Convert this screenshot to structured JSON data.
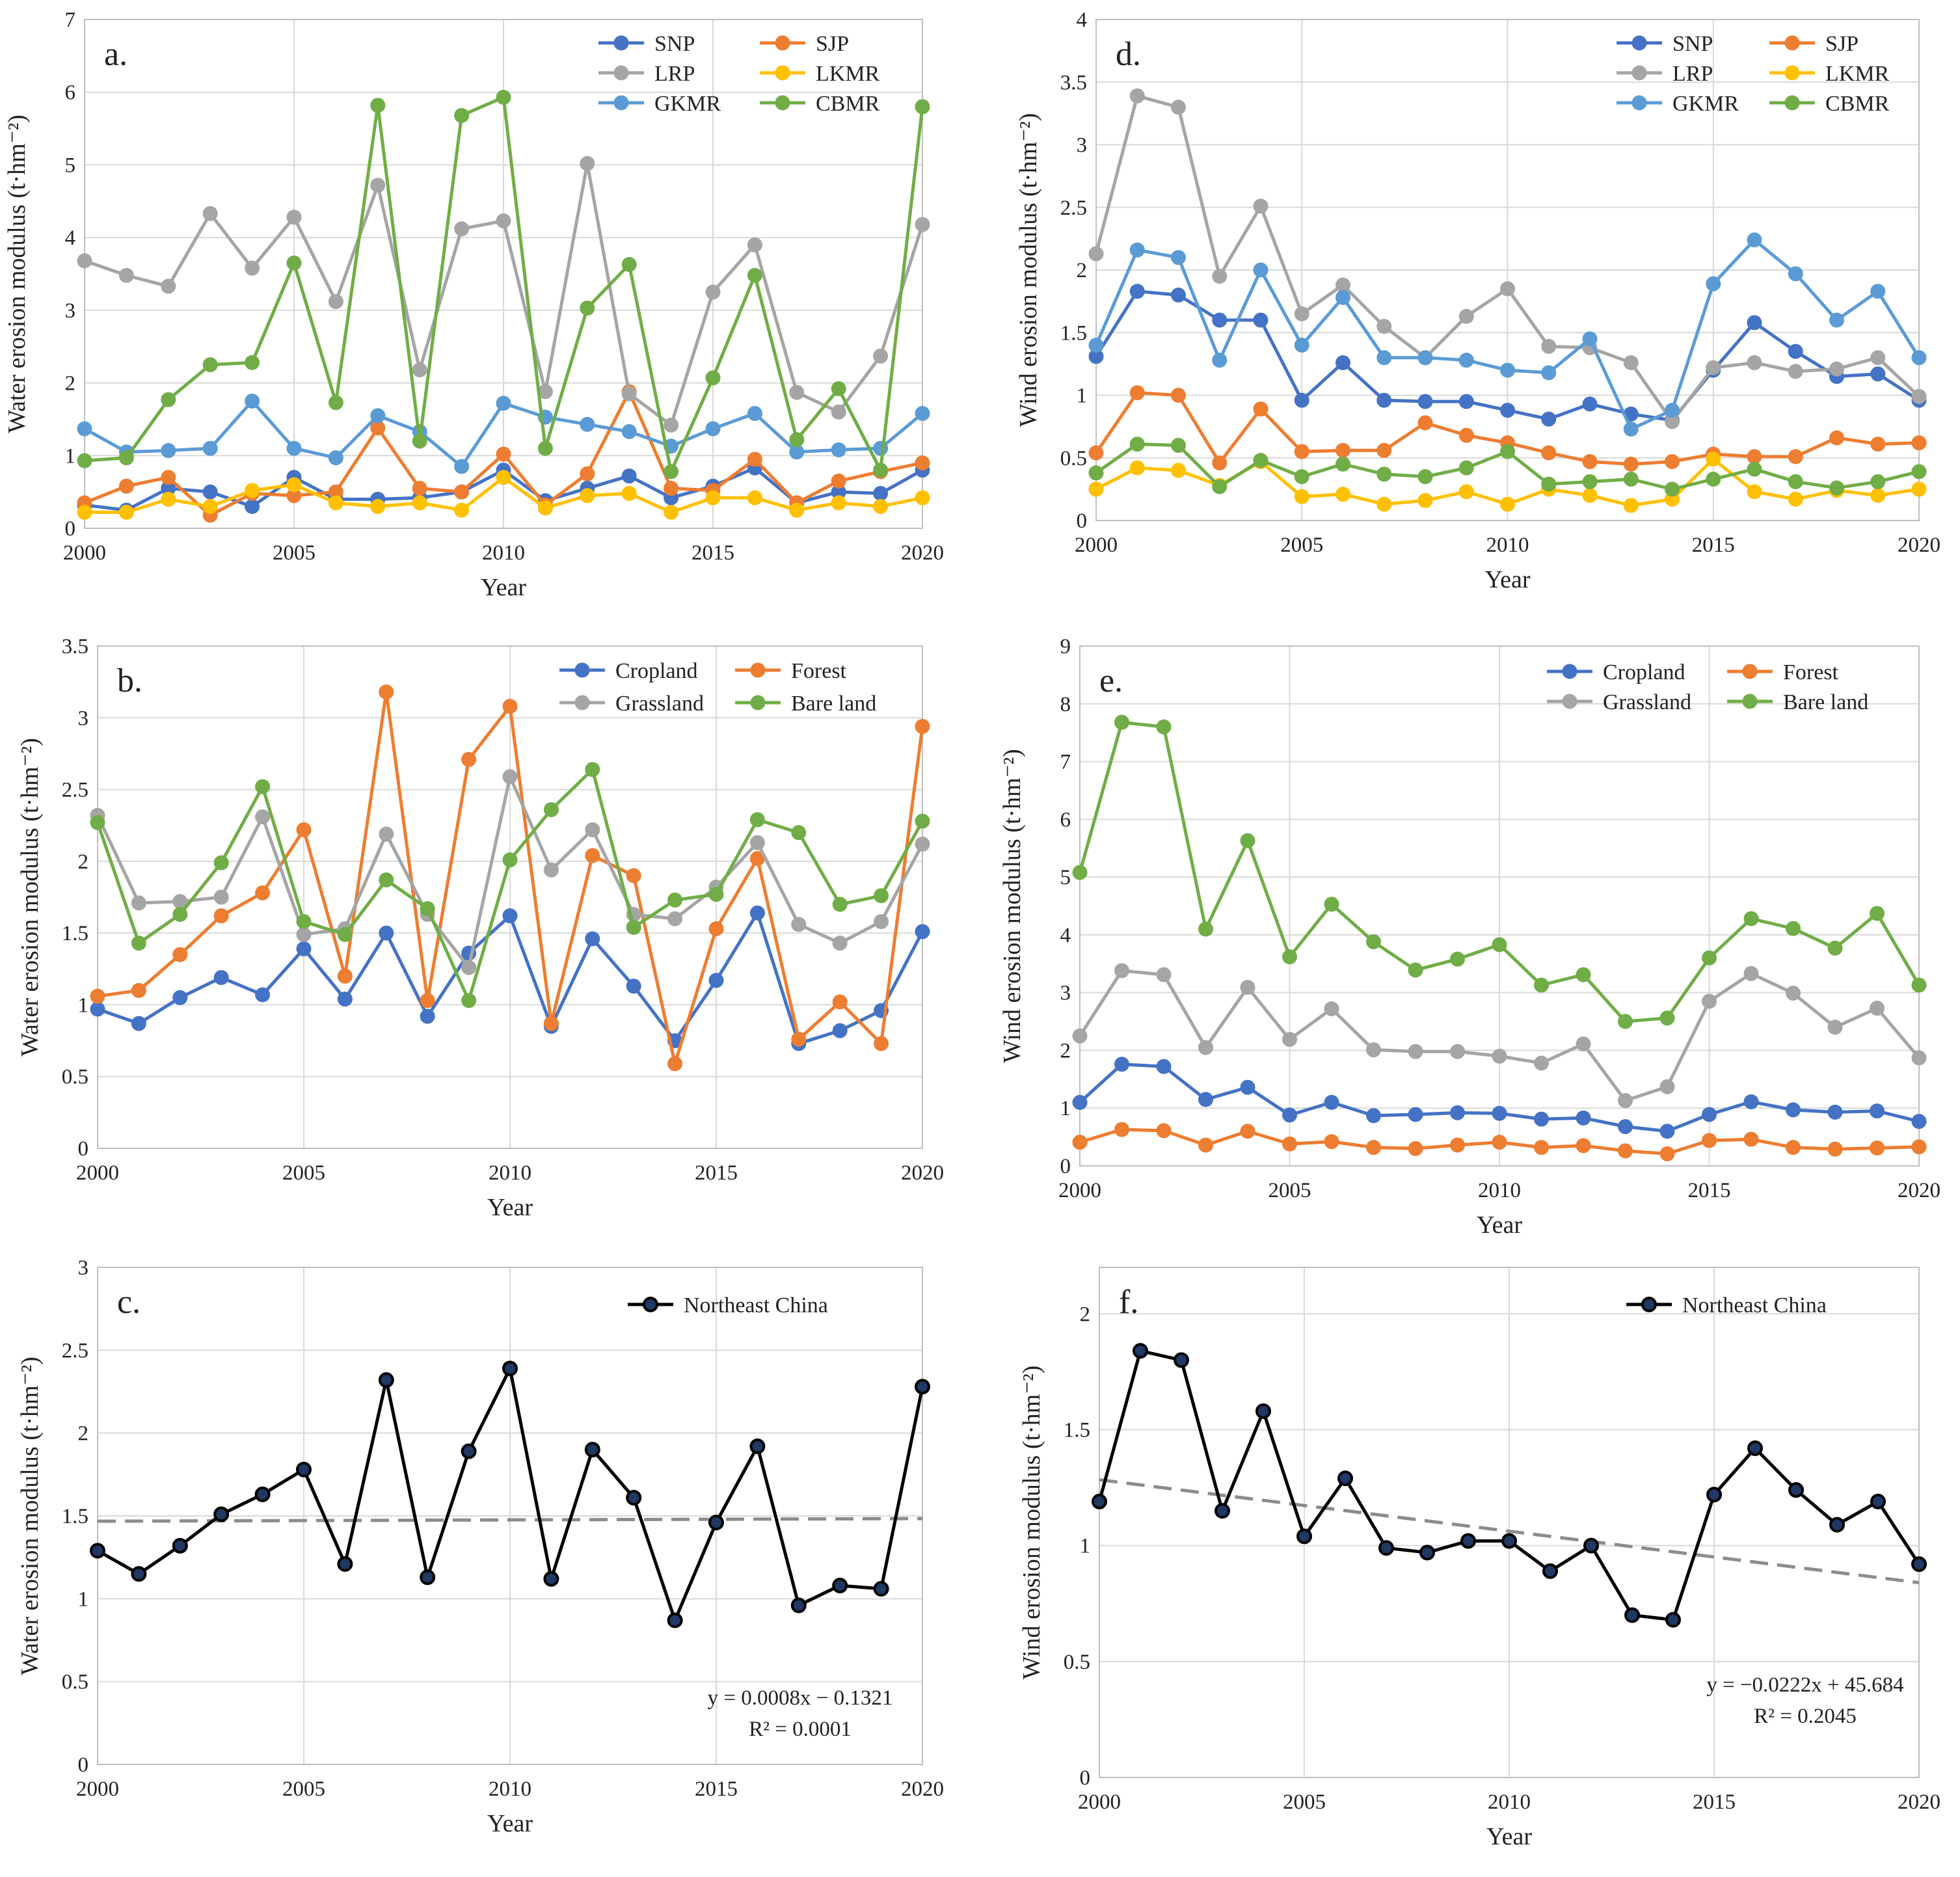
{
  "figure": {
    "panels": [
      "a",
      "b",
      "c",
      "d",
      "e",
      "f"
    ]
  },
  "colors": {
    "SNP": "#4472c4",
    "SJP": "#ed7d31",
    "LRP": "#a5a5a5",
    "LKMR": "#ffc000",
    "GKMR": "#5b9bd5",
    "CBMR": "#70ad47",
    "Cropland": "#4472c4",
    "Forest": "#ed7d31",
    "Grassland": "#a5a5a5",
    "Bare land": "#70ad47",
    "Northeast China": "#000000",
    "trend": "#8c8c8c",
    "grid": "#d9d9d9"
  },
  "chart_data": [
    {
      "id": "a",
      "type": "line",
      "panel_label": "a.",
      "xlabel": "Year",
      "ylabel": "Water erosion modulus (t·hm⁻²)",
      "xlim": [
        2000,
        2020
      ],
      "xticks": [
        2000,
        2005,
        2010,
        2015,
        2020
      ],
      "ylim": [
        0,
        7
      ],
      "yticks": [
        0,
        1,
        2,
        3,
        4,
        5,
        6,
        7
      ],
      "legend": {
        "placement": "top-right",
        "columns": 2
      },
      "x": [
        2000,
        2001,
        2002,
        2003,
        2004,
        2005,
        2006,
        2007,
        2008,
        2009,
        2010,
        2011,
        2012,
        2013,
        2014,
        2015,
        2016,
        2017,
        2018,
        2019,
        2020
      ],
      "series": [
        {
          "name": "SNP",
          "values": [
            0.32,
            0.25,
            0.55,
            0.5,
            0.3,
            0.7,
            0.4,
            0.4,
            0.42,
            0.5,
            0.8,
            0.38,
            0.55,
            0.72,
            0.42,
            0.58,
            0.83,
            0.35,
            0.5,
            0.48,
            0.8
          ]
        },
        {
          "name": "SJP",
          "values": [
            0.35,
            0.58,
            0.7,
            0.18,
            0.48,
            0.45,
            0.5,
            1.38,
            0.55,
            0.5,
            1.02,
            0.32,
            0.75,
            1.88,
            0.55,
            0.52,
            0.95,
            0.35,
            0.65,
            0.78,
            0.9
          ]
        },
        {
          "name": "LRP",
          "values": [
            3.68,
            3.48,
            3.33,
            4.33,
            3.58,
            4.28,
            3.12,
            4.72,
            2.18,
            4.12,
            4.23,
            1.88,
            5.02,
            1.85,
            1.42,
            3.25,
            3.9,
            1.87,
            1.6,
            2.37,
            4.18
          ]
        },
        {
          "name": "LKMR",
          "values": [
            0.22,
            0.22,
            0.4,
            0.3,
            0.52,
            0.6,
            0.35,
            0.3,
            0.35,
            0.25,
            0.7,
            0.28,
            0.45,
            0.48,
            0.22,
            0.42,
            0.42,
            0.25,
            0.35,
            0.3,
            0.42
          ]
        },
        {
          "name": "GKMR",
          "values": [
            1.37,
            1.05,
            1.07,
            1.1,
            1.75,
            1.1,
            0.97,
            1.55,
            1.33,
            0.85,
            1.72,
            1.53,
            1.43,
            1.33,
            1.13,
            1.37,
            1.58,
            1.05,
            1.08,
            1.1,
            1.58
          ]
        },
        {
          "name": "CBMR",
          "values": [
            0.93,
            0.97,
            1.77,
            2.25,
            2.28,
            3.65,
            1.73,
            5.82,
            1.2,
            5.68,
            5.93,
            1.1,
            3.03,
            3.63,
            0.78,
            2.07,
            3.48,
            1.22,
            1.92,
            0.8,
            5.8
          ]
        }
      ]
    },
    {
      "id": "b",
      "type": "line",
      "panel_label": "b.",
      "xlabel": "Year",
      "ylabel": "Water erosion  modulus  (t·hm⁻²)",
      "xlim": [
        2000,
        2020
      ],
      "xticks": [
        2000,
        2005,
        2010,
        2015,
        2020
      ],
      "ylim": [
        0,
        3.5
      ],
      "yticks": [
        0,
        0.5,
        1,
        1.5,
        2,
        2.5,
        3,
        3.5
      ],
      "legend": {
        "placement": "top-right",
        "columns": 2
      },
      "x": [
        2000,
        2001,
        2002,
        2003,
        2004,
        2005,
        2006,
        2007,
        2008,
        2009,
        2010,
        2011,
        2012,
        2013,
        2014,
        2015,
        2016,
        2017,
        2018,
        2019,
        2020
      ],
      "series": [
        {
          "name": "Cropland",
          "values": [
            0.97,
            0.87,
            1.05,
            1.19,
            1.07,
            1.39,
            1.04,
            1.5,
            0.92,
            1.36,
            1.62,
            0.85,
            1.46,
            1.13,
            0.75,
            1.17,
            1.64,
            0.73,
            0.82,
            0.96,
            1.51
          ]
        },
        {
          "name": "Forest",
          "values": [
            1.06,
            1.1,
            1.35,
            1.62,
            1.78,
            2.22,
            1.2,
            3.18,
            1.03,
            2.71,
            3.08,
            0.87,
            2.04,
            1.9,
            0.59,
            1.53,
            2.02,
            0.76,
            1.02,
            0.73,
            2.94
          ]
        },
        {
          "name": "Grassland",
          "values": [
            2.32,
            1.71,
            1.72,
            1.75,
            2.31,
            1.49,
            1.53,
            2.19,
            1.63,
            1.26,
            2.59,
            1.94,
            2.22,
            1.63,
            1.6,
            1.82,
            2.13,
            1.56,
            1.43,
            1.58,
            2.12
          ]
        },
        {
          "name": "Bare land",
          "values": [
            2.27,
            1.43,
            1.63,
            1.99,
            2.52,
            1.58,
            1.49,
            1.87,
            1.67,
            1.03,
            2.01,
            2.36,
            2.64,
            1.54,
            1.73,
            1.77,
            2.29,
            2.2,
            1.7,
            1.76,
            2.28
          ]
        }
      ]
    },
    {
      "id": "c",
      "type": "line",
      "panel_label": "c.",
      "xlabel": "Year",
      "ylabel": "Water erosion modulus (t·hm⁻²)",
      "xlim": [
        2000,
        2020
      ],
      "xticks": [
        2000,
        2005,
        2010,
        2015,
        2020
      ],
      "ylim": [
        0,
        3
      ],
      "yticks": [
        0,
        0.5,
        1,
        1.5,
        2,
        2.5,
        3
      ],
      "legend": {
        "placement": "top-right",
        "columns": 1
      },
      "x": [
        2000,
        2001,
        2002,
        2003,
        2004,
        2005,
        2006,
        2007,
        2008,
        2009,
        2010,
        2011,
        2012,
        2013,
        2014,
        2015,
        2016,
        2017,
        2018,
        2019,
        2020
      ],
      "series": [
        {
          "name": "Northeast China",
          "values": [
            1.29,
            1.15,
            1.32,
            1.51,
            1.63,
            1.78,
            1.21,
            2.32,
            1.13,
            1.89,
            2.39,
            1.12,
            1.9,
            1.61,
            0.87,
            1.46,
            1.92,
            0.96,
            1.08,
            1.06,
            2.28
          ]
        }
      ],
      "trend": {
        "slope": 0.0008,
        "intercept": -0.1321
      },
      "equation": "y = 0.0008x − 0.1321",
      "r2": "R² = 0.0001"
    },
    {
      "id": "d",
      "type": "line",
      "panel_label": "d.",
      "xlabel": "Year",
      "ylabel": "Wind erosion  modulus  (t·hm⁻²)",
      "xlim": [
        2000,
        2020
      ],
      "xticks": [
        2000,
        2005,
        2010,
        2015,
        2020
      ],
      "ylim": [
        0,
        4
      ],
      "yticks": [
        0,
        0.5,
        1,
        1.5,
        2,
        2.5,
        3,
        3.5,
        4
      ],
      "legend": {
        "placement": "top-right",
        "columns": 2
      },
      "x": [
        2000,
        2001,
        2002,
        2003,
        2004,
        2005,
        2006,
        2007,
        2008,
        2009,
        2010,
        2011,
        2012,
        2013,
        2014,
        2015,
        2016,
        2017,
        2018,
        2019,
        2020
      ],
      "series": [
        {
          "name": "SNP",
          "values": [
            1.31,
            1.83,
            1.8,
            1.6,
            1.6,
            0.96,
            1.26,
            0.96,
            0.95,
            0.95,
            0.88,
            0.81,
            0.93,
            0.85,
            0.8,
            1.2,
            1.58,
            1.35,
            1.15,
            1.17,
            0.96
          ]
        },
        {
          "name": "SJP",
          "values": [
            0.54,
            1.02,
            1.0,
            0.46,
            0.89,
            0.55,
            0.56,
            0.56,
            0.78,
            0.68,
            0.62,
            0.54,
            0.47,
            0.45,
            0.47,
            0.53,
            0.51,
            0.51,
            0.66,
            0.61,
            0.62
          ]
        },
        {
          "name": "LRP",
          "values": [
            2.13,
            3.39,
            3.3,
            1.95,
            2.51,
            1.65,
            1.88,
            1.55,
            1.3,
            1.63,
            1.85,
            1.39,
            1.38,
            1.26,
            0.79,
            1.22,
            1.26,
            1.19,
            1.21,
            1.3,
            0.99
          ]
        },
        {
          "name": "LKMR",
          "values": [
            0.25,
            0.42,
            0.4,
            0.28,
            0.47,
            0.19,
            0.21,
            0.13,
            0.16,
            0.23,
            0.13,
            0.25,
            0.2,
            0.12,
            0.17,
            0.49,
            0.23,
            0.17,
            0.24,
            0.2,
            0.25
          ]
        },
        {
          "name": "GKMR",
          "values": [
            1.4,
            2.16,
            2.1,
            1.28,
            2.0,
            1.4,
            1.78,
            1.3,
            1.3,
            1.28,
            1.2,
            1.18,
            1.45,
            0.73,
            0.88,
            1.89,
            2.24,
            1.97,
            1.6,
            1.83,
            1.3
          ]
        },
        {
          "name": "CBMR",
          "values": [
            0.38,
            0.61,
            0.6,
            0.27,
            0.48,
            0.35,
            0.45,
            0.37,
            0.35,
            0.42,
            0.55,
            0.29,
            0.31,
            0.33,
            0.25,
            0.33,
            0.41,
            0.31,
            0.26,
            0.31,
            0.39
          ]
        }
      ]
    },
    {
      "id": "e",
      "type": "line",
      "panel_label": "e.",
      "xlabel": "Year",
      "ylabel": "Wind erosion  modulus  (t·hm⁻²)",
      "xlim": [
        2000,
        2020
      ],
      "xticks": [
        2000,
        2005,
        2010,
        2015,
        2020
      ],
      "ylim": [
        0,
        9
      ],
      "yticks": [
        0,
        1,
        2,
        3,
        4,
        5,
        6,
        7,
        8,
        9
      ],
      "legend": {
        "placement": "top-right",
        "columns": 2
      },
      "x": [
        2000,
        2001,
        2002,
        2003,
        2004,
        2005,
        2006,
        2007,
        2008,
        2009,
        2010,
        2011,
        2012,
        2013,
        2014,
        2015,
        2016,
        2017,
        2018,
        2019,
        2020
      ],
      "series": [
        {
          "name": "Cropland",
          "values": [
            1.1,
            1.76,
            1.72,
            1.15,
            1.36,
            0.88,
            1.1,
            0.87,
            0.89,
            0.92,
            0.91,
            0.81,
            0.83,
            0.68,
            0.6,
            0.89,
            1.11,
            0.97,
            0.93,
            0.95,
            0.77
          ]
        },
        {
          "name": "Forest",
          "values": [
            0.41,
            0.63,
            0.61,
            0.36,
            0.6,
            0.38,
            0.42,
            0.32,
            0.3,
            0.36,
            0.41,
            0.32,
            0.35,
            0.26,
            0.21,
            0.44,
            0.46,
            0.32,
            0.29,
            0.31,
            0.33
          ]
        },
        {
          "name": "Grassland",
          "values": [
            2.25,
            3.38,
            3.31,
            2.05,
            3.09,
            2.19,
            2.72,
            2.01,
            1.98,
            1.98,
            1.9,
            1.78,
            2.11,
            1.13,
            1.37,
            2.85,
            3.33,
            2.99,
            2.4,
            2.73,
            1.87
          ]
        },
        {
          "name": "Bare land",
          "values": [
            5.08,
            7.68,
            7.6,
            4.1,
            5.63,
            3.62,
            4.53,
            3.88,
            3.39,
            3.58,
            3.83,
            3.13,
            3.31,
            2.5,
            2.56,
            3.6,
            4.28,
            4.11,
            3.77,
            4.37,
            3.13
          ]
        }
      ]
    },
    {
      "id": "f",
      "type": "line",
      "panel_label": "f.",
      "xlabel": "Year",
      "ylabel": "Wind erosion modulus (t·hm⁻²)",
      "xlim": [
        2000,
        2020
      ],
      "xticks": [
        2000,
        2005,
        2010,
        2015,
        2020
      ],
      "ylim": [
        0,
        2.2
      ],
      "yticks": [
        0,
        0.5,
        1,
        1.5,
        2
      ],
      "legend": {
        "placement": "top-right",
        "columns": 1
      },
      "x": [
        2000,
        2001,
        2002,
        2003,
        2004,
        2005,
        2006,
        2007,
        2008,
        2009,
        2010,
        2011,
        2012,
        2013,
        2014,
        2015,
        2016,
        2017,
        2018,
        2019,
        2020
      ],
      "series": [
        {
          "name": "Northeast China",
          "values": [
            1.19,
            1.84,
            1.8,
            1.15,
            1.58,
            1.04,
            1.29,
            0.99,
            0.97,
            1.02,
            1.02,
            0.89,
            1.0,
            0.7,
            0.68,
            1.22,
            1.42,
            1.24,
            1.09,
            1.19,
            0.92
          ]
        }
      ],
      "trend": {
        "slope": -0.0222,
        "intercept": 45.684
      },
      "equation": "y = −0.0222x + 45.684",
      "r2": "R² = 0.2045"
    }
  ]
}
